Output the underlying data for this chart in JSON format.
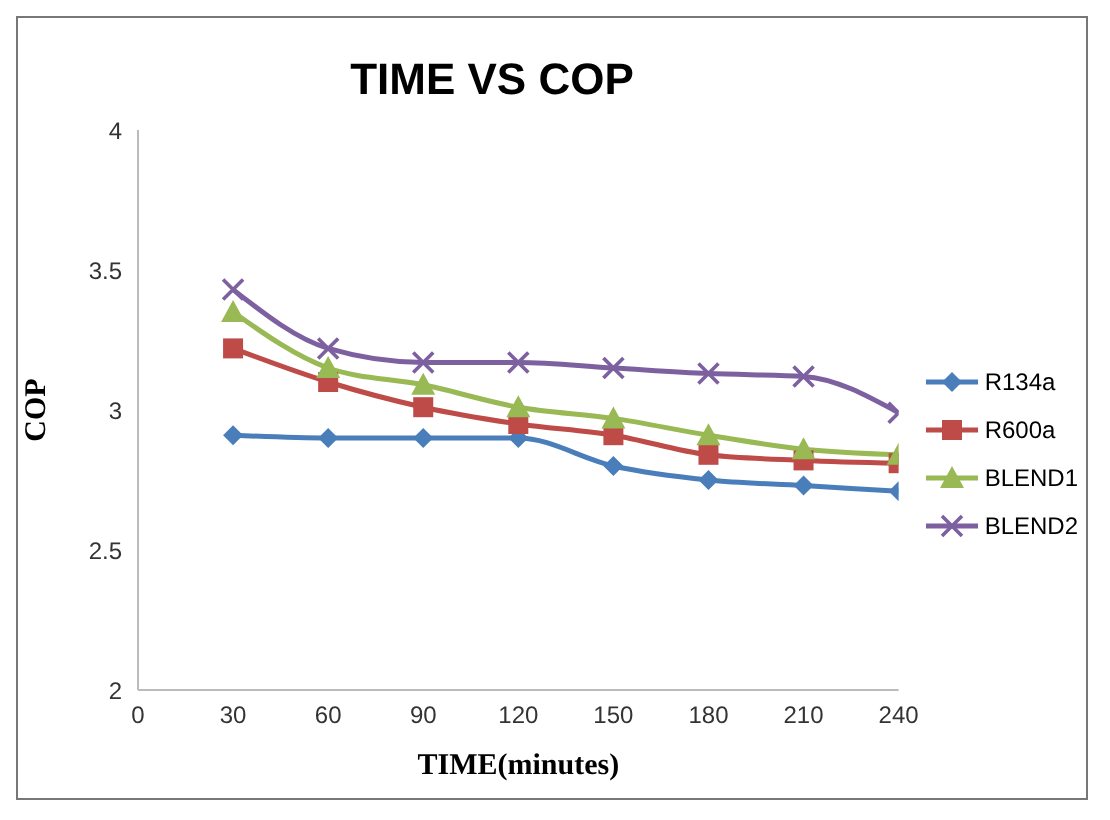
{
  "chart_data": {
    "type": "line",
    "title": "TIME VS COP",
    "xlabel": "TIME(minutes)",
    "ylabel": "COP",
    "x": [
      30,
      60,
      90,
      120,
      150,
      180,
      210,
      240
    ],
    "xlim": [
      0,
      240
    ],
    "xticks": [
      0,
      30,
      60,
      90,
      120,
      150,
      180,
      210,
      240
    ],
    "ylim": [
      2,
      4
    ],
    "yticks": [
      2,
      2.5,
      3,
      3.5,
      4
    ],
    "grid": false,
    "legend": "right",
    "series": [
      {
        "name": "R134a",
        "color": "#4a7ebb",
        "marker": "diamond",
        "values": [
          2.91,
          2.9,
          2.9,
          2.9,
          2.8,
          2.75,
          2.73,
          2.71
        ]
      },
      {
        "name": "R600a",
        "color": "#be4b48",
        "marker": "square",
        "values": [
          3.22,
          3.1,
          3.01,
          2.95,
          2.91,
          2.84,
          2.82,
          2.81
        ]
      },
      {
        "name": "BLEND1",
        "color": "#98b954",
        "marker": "triangle",
        "values": [
          3.35,
          3.15,
          3.09,
          3.01,
          2.97,
          2.91,
          2.86,
          2.84
        ]
      },
      {
        "name": "BLEND2",
        "color": "#7d60a0",
        "marker": "cross",
        "values": [
          3.43,
          3.22,
          3.17,
          3.17,
          3.15,
          3.13,
          3.12,
          2.99
        ]
      }
    ]
  }
}
